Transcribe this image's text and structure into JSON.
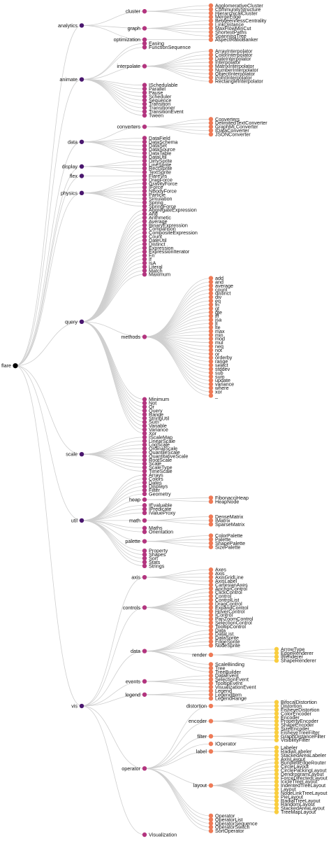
{
  "colors": {
    "depth": [
      "#000000",
      "#4a176f",
      "#b3357f",
      "#ef7a56",
      "#f9cd3f"
    ],
    "link": "#cfcfcf",
    "label": "#111111"
  },
  "tree": {
    "name": "flare",
    "children": [
      {
        "name": "analytics",
        "children": [
          {
            "name": "cluster",
            "children": [
              {
                "name": "AgglomerativeCluster"
              },
              {
                "name": "CommunityStructure"
              },
              {
                "name": "HierarchicalCluster"
              },
              {
                "name": "MergeEdge"
              }
            ]
          },
          {
            "name": "graph",
            "children": [
              {
                "name": "BetweennessCentrality"
              },
              {
                "name": "LinkDistance"
              },
              {
                "name": "MaxFlowMinCut"
              },
              {
                "name": "ShortestPaths"
              },
              {
                "name": "SpanningTree"
              }
            ]
          },
          {
            "name": "optimization",
            "children": [
              {
                "name": "AspectRatioBanker"
              }
            ]
          }
        ]
      },
      {
        "name": "animate",
        "children": [
          {
            "name": "Easing"
          },
          {
            "name": "FunctionSequence"
          },
          {
            "name": "interpolate",
            "children": [
              {
                "name": "ArrayInterpolator"
              },
              {
                "name": "ColorInterpolator"
              },
              {
                "name": "DateInterpolator"
              },
              {
                "name": "Interpolator"
              },
              {
                "name": "MatrixInterpolator"
              },
              {
                "name": "NumberInterpolator"
              },
              {
                "name": "ObjectInterpolator"
              },
              {
                "name": "PointInterpolator"
              },
              {
                "name": "RectangleInterpolator"
              }
            ]
          },
          {
            "name": "ISchedulable"
          },
          {
            "name": "Parallel"
          },
          {
            "name": "Pause"
          },
          {
            "name": "Scheduler"
          },
          {
            "name": "Sequence"
          },
          {
            "name": "Transition"
          },
          {
            "name": "Transitioner"
          },
          {
            "name": "TransitionEvent"
          },
          {
            "name": "Tween"
          }
        ]
      },
      {
        "name": "data",
        "children": [
          {
            "name": "converters",
            "children": [
              {
                "name": "Converters"
              },
              {
                "name": "DelimitedTextConverter"
              },
              {
                "name": "GraphMLConverter"
              },
              {
                "name": "IDataConverter"
              },
              {
                "name": "JSONConverter"
              }
            ]
          },
          {
            "name": "DataField"
          },
          {
            "name": "DataSchema"
          },
          {
            "name": "DataSet"
          },
          {
            "name": "DataSource"
          },
          {
            "name": "DataTable"
          },
          {
            "name": "DataUtil"
          }
        ]
      },
      {
        "name": "display",
        "children": [
          {
            "name": "DirtySprite"
          },
          {
            "name": "LineSprite"
          },
          {
            "name": "RectSprite"
          },
          {
            "name": "TextSprite"
          }
        ]
      },
      {
        "name": "flex",
        "children": [
          {
            "name": "FlareVis"
          }
        ]
      },
      {
        "name": "physics",
        "children": [
          {
            "name": "DragForce"
          },
          {
            "name": "GravityForce"
          },
          {
            "name": "IForce"
          },
          {
            "name": "NBodyForce"
          },
          {
            "name": "Particle"
          },
          {
            "name": "Simulation"
          },
          {
            "name": "Spring"
          },
          {
            "name": "SpringForce"
          }
        ]
      },
      {
        "name": "query",
        "children": [
          {
            "name": "AggregateExpression"
          },
          {
            "name": "And"
          },
          {
            "name": "Arithmetic"
          },
          {
            "name": "Average"
          },
          {
            "name": "BinaryExpression"
          },
          {
            "name": "Comparison"
          },
          {
            "name": "CompositeExpression"
          },
          {
            "name": "Count"
          },
          {
            "name": "DateUtil"
          },
          {
            "name": "Distinct"
          },
          {
            "name": "Expression"
          },
          {
            "name": "ExpressionIterator"
          },
          {
            "name": "Fn"
          },
          {
            "name": "If"
          },
          {
            "name": "IsA"
          },
          {
            "name": "Literal"
          },
          {
            "name": "Match"
          },
          {
            "name": "Maximum"
          },
          {
            "name": "methods",
            "children": [
              {
                "name": "add"
              },
              {
                "name": "and"
              },
              {
                "name": "average"
              },
              {
                "name": "count"
              },
              {
                "name": "distinct"
              },
              {
                "name": "div"
              },
              {
                "name": "eq"
              },
              {
                "name": "fn"
              },
              {
                "name": "gt"
              },
              {
                "name": "gte"
              },
              {
                "name": "iff"
              },
              {
                "name": "isa"
              },
              {
                "name": "lt"
              },
              {
                "name": "lte"
              },
              {
                "name": "max"
              },
              {
                "name": "min"
              },
              {
                "name": "mod"
              },
              {
                "name": "mul"
              },
              {
                "name": "neq"
              },
              {
                "name": "not"
              },
              {
                "name": "or"
              },
              {
                "name": "orderby"
              },
              {
                "name": "range"
              },
              {
                "name": "select"
              },
              {
                "name": "stddev"
              },
              {
                "name": "sub"
              },
              {
                "name": "sum"
              },
              {
                "name": "update"
              },
              {
                "name": "variance"
              },
              {
                "name": "where"
              },
              {
                "name": "xor"
              },
              {
                "name": "_"
              }
            ]
          },
          {
            "name": "Minimum"
          },
          {
            "name": "Not"
          },
          {
            "name": "Or"
          },
          {
            "name": "Query"
          },
          {
            "name": "Range"
          },
          {
            "name": "StringUtil"
          },
          {
            "name": "Sum"
          },
          {
            "name": "Variable"
          },
          {
            "name": "Variance"
          },
          {
            "name": "Xor"
          }
        ]
      },
      {
        "name": "scale",
        "children": [
          {
            "name": "IScaleMap"
          },
          {
            "name": "LinearScale"
          },
          {
            "name": "LogScale"
          },
          {
            "name": "OrdinalScale"
          },
          {
            "name": "QuantileScale"
          },
          {
            "name": "QuantitativeScale"
          },
          {
            "name": "RootScale"
          },
          {
            "name": "Scale"
          },
          {
            "name": "ScaleType"
          },
          {
            "name": "TimeScale"
          }
        ]
      },
      {
        "name": "util",
        "children": [
          {
            "name": "Arrays"
          },
          {
            "name": "Colors"
          },
          {
            "name": "Dates"
          },
          {
            "name": "Displays"
          },
          {
            "name": "Filter"
          },
          {
            "name": "Geometry"
          },
          {
            "name": "heap",
            "children": [
              {
                "name": "FibonacciHeap"
              },
              {
                "name": "HeapNode"
              }
            ]
          },
          {
            "name": "IEvaluable"
          },
          {
            "name": "IPredicate"
          },
          {
            "name": "IValueProxy"
          },
          {
            "name": "math",
            "children": [
              {
                "name": "DenseMatrix"
              },
              {
                "name": "IMatrix"
              },
              {
                "name": "SparseMatrix"
              }
            ]
          },
          {
            "name": "Maths"
          },
          {
            "name": "Orientation"
          },
          {
            "name": "palette",
            "children": [
              {
                "name": "ColorPalette"
              },
              {
                "name": "Palette"
              },
              {
                "name": "ShapePalette"
              },
              {
                "name": "SizePalette"
              }
            ]
          },
          {
            "name": "Property"
          },
          {
            "name": "Shapes"
          },
          {
            "name": "Sort"
          },
          {
            "name": "Stats"
          },
          {
            "name": "Strings"
          }
        ]
      },
      {
        "name": "vis",
        "children": [
          {
            "name": "axis",
            "children": [
              {
                "name": "Axes"
              },
              {
                "name": "Axis"
              },
              {
                "name": "AxisGridLine"
              },
              {
                "name": "AxisLabel"
              },
              {
                "name": "CartesianAxes"
              }
            ]
          },
          {
            "name": "controls",
            "children": [
              {
                "name": "AnchorControl"
              },
              {
                "name": "ClickControl"
              },
              {
                "name": "Control"
              },
              {
                "name": "ControlList"
              },
              {
                "name": "DragControl"
              },
              {
                "name": "ExpandControl"
              },
              {
                "name": "HoverControl"
              },
              {
                "name": "IControl"
              },
              {
                "name": "PanZoomControl"
              },
              {
                "name": "SelectionControl"
              },
              {
                "name": "TooltipControl"
              }
            ]
          },
          {
            "name": "data",
            "children": [
              {
                "name": "Data"
              },
              {
                "name": "DataList"
              },
              {
                "name": "DataSprite"
              },
              {
                "name": "EdgeSprite"
              },
              {
                "name": "NodeSprite"
              },
              {
                "name": "render",
                "children": [
                  {
                    "name": "ArrowType"
                  },
                  {
                    "name": "EdgeRenderer"
                  },
                  {
                    "name": "IRenderer"
                  },
                  {
                    "name": "ShapeRenderer"
                  }
                ]
              },
              {
                "name": "ScaleBinding"
              },
              {
                "name": "Tree"
              },
              {
                "name": "TreeBuilder"
              }
            ]
          },
          {
            "name": "events",
            "children": [
              {
                "name": "DataEvent"
              },
              {
                "name": "SelectionEvent"
              },
              {
                "name": "TooltipEvent"
              },
              {
                "name": "VisualizationEvent"
              }
            ]
          },
          {
            "name": "legend",
            "children": [
              {
                "name": "Legend"
              },
              {
                "name": "LegendItem"
              },
              {
                "name": "LegendRange"
              }
            ]
          },
          {
            "name": "operator",
            "children": [
              {
                "name": "distortion",
                "children": [
                  {
                    "name": "BifocalDistortion"
                  },
                  {
                    "name": "Distortion"
                  },
                  {
                    "name": "FisheyeDistortion"
                  }
                ]
              },
              {
                "name": "encoder",
                "children": [
                  {
                    "name": "ColorEncoder"
                  },
                  {
                    "name": "Encoder"
                  },
                  {
                    "name": "PropertyEncoder"
                  },
                  {
                    "name": "ShapeEncoder"
                  },
                  {
                    "name": "SizeEncoder"
                  }
                ]
              },
              {
                "name": "filter",
                "children": [
                  {
                    "name": "FisheyeTreeFilter"
                  },
                  {
                    "name": "GraphDistanceFilter"
                  },
                  {
                    "name": "VisibilityFilter"
                  }
                ]
              },
              {
                "name": "IOperator"
              },
              {
                "name": "label",
                "children": [
                  {
                    "name": "Labeler"
                  },
                  {
                    "name": "RadialLabeler"
                  },
                  {
                    "name": "StackedAreaLabeler"
                  }
                ]
              },
              {
                "name": "layout",
                "children": [
                  {
                    "name": "AxisLayout"
                  },
                  {
                    "name": "BundledEdgeRouter"
                  },
                  {
                    "name": "CircleLayout"
                  },
                  {
                    "name": "CirclePackingLayout"
                  },
                  {
                    "name": "DendrogramLayout"
                  },
                  {
                    "name": "ForceDirectedLayout"
                  },
                  {
                    "name": "IcicleTreeLayout"
                  },
                  {
                    "name": "IndentedTreeLayout"
                  },
                  {
                    "name": "Layout"
                  },
                  {
                    "name": "NodeLinkTreeLayout"
                  },
                  {
                    "name": "PieLayout"
                  },
                  {
                    "name": "RadialTreeLayout"
                  },
                  {
                    "name": "RandomLayout"
                  },
                  {
                    "name": "StackedAreaLayout"
                  },
                  {
                    "name": "TreeMapLayout"
                  }
                ]
              },
              {
                "name": "Operator"
              },
              {
                "name": "OperatorList"
              },
              {
                "name": "OperatorSequence"
              },
              {
                "name": "OperatorSwitch"
              },
              {
                "name": "SortOperator"
              }
            ]
          },
          {
            "name": "Visualization"
          }
        ]
      }
    ]
  }
}
